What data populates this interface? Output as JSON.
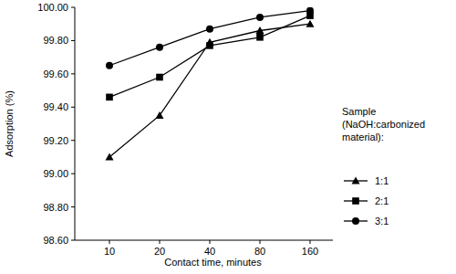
{
  "chart_data": {
    "type": "line",
    "x_label": "Contact time, minutes",
    "y_label": "Adsorption (%)",
    "legend_title": "Sample (NaOH:carbonized material):",
    "categories": [
      "10",
      "20",
      "40",
      "80",
      "160"
    ],
    "series": [
      {
        "name": "1:1",
        "color": "#000000",
        "marker": "triangle",
        "values": [
          99.1,
          99.35,
          99.79,
          99.86,
          99.9
        ]
      },
      {
        "name": "2:1",
        "color": "#000000",
        "marker": "square",
        "values": [
          99.46,
          99.58,
          99.77,
          99.82,
          99.95
        ]
      },
      {
        "name": "3:1",
        "color": "#000000",
        "marker": "circle",
        "values": [
          99.65,
          99.76,
          99.87,
          99.94,
          99.98
        ]
      }
    ],
    "ylim": [
      98.6,
      100
    ],
    "yticks": [
      {
        "value": 98.6,
        "label": "98.60"
      },
      {
        "value": 98.8,
        "label": "98.80"
      },
      {
        "value": 99,
        "label": "99.00"
      },
      {
        "value": 99.2,
        "label": "99.20"
      },
      {
        "value": 99.4,
        "label": "99.40"
      },
      {
        "value": 99.6,
        "label": "99.60"
      },
      {
        "value": 99.8,
        "label": "99.80"
      },
      {
        "value": 100,
        "label": "100.00"
      }
    ],
    "grid": false,
    "legend": "right"
  }
}
